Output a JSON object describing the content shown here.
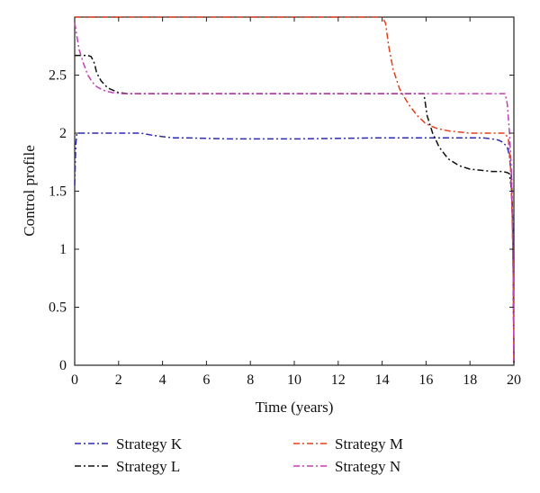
{
  "chart_data": {
    "type": "line",
    "xlabel": "Time (years)",
    "ylabel": "Control profile",
    "xlim": [
      0,
      20
    ],
    "ylim": [
      0,
      3
    ],
    "xticks": [
      "0",
      "2",
      "4",
      "6",
      "8",
      "10",
      "12",
      "14",
      "16",
      "18",
      "20"
    ],
    "yticks": [
      "0",
      "0.5",
      "1",
      "1.5",
      "2",
      "2.5"
    ],
    "grid": false,
    "legend_position": "below",
    "series": [
      {
        "name": "Strategy K",
        "color": "#2b2bb0",
        "x": [
          0,
          0.05,
          0.1,
          0.3,
          1.0,
          2.0,
          3.0,
          3.3,
          3.6,
          4.0,
          4.5,
          5.0,
          7.0,
          10.0,
          14.0,
          18.0,
          18.6,
          19.0,
          19.3,
          19.5,
          19.7,
          19.8,
          19.9,
          19.96,
          20.0
        ],
        "y": [
          1.55,
          1.9,
          2.0,
          2.0,
          2.0,
          2.0,
          2.0,
          1.99,
          1.98,
          1.97,
          1.96,
          1.96,
          1.95,
          1.95,
          1.96,
          1.96,
          1.96,
          1.95,
          1.94,
          1.92,
          1.88,
          1.8,
          1.6,
          1.1,
          0.05
        ]
      },
      {
        "name": "Strategy L",
        "color": "#111111",
        "x": [
          0,
          0.6,
          0.75,
          0.9,
          1.0,
          1.2,
          1.5,
          2.0,
          2.4,
          5,
          10,
          15.9,
          16.05,
          16.3,
          16.6,
          17.0,
          17.5,
          18.0,
          18.5,
          19.0,
          19.5,
          19.7,
          19.8,
          19.9,
          19.96,
          20.0
        ],
        "y": [
          2.67,
          2.67,
          2.66,
          2.6,
          2.52,
          2.45,
          2.39,
          2.35,
          2.34,
          2.34,
          2.34,
          2.34,
          2.15,
          2.0,
          1.88,
          1.78,
          1.72,
          1.69,
          1.68,
          1.67,
          1.67,
          1.66,
          1.65,
          1.5,
          1.0,
          0.02
        ]
      },
      {
        "name": "Strategy M",
        "color": "#e0401c",
        "x": [
          0,
          14.0,
          14.15,
          14.3,
          14.5,
          14.8,
          15.2,
          15.6,
          16.0,
          16.5,
          17.0,
          17.5,
          18.0,
          19.0,
          19.6,
          19.75,
          19.85,
          19.92,
          19.97,
          20.0
        ],
        "y": [
          3.0,
          3.0,
          2.95,
          2.75,
          2.55,
          2.38,
          2.25,
          2.15,
          2.08,
          2.04,
          2.02,
          2.01,
          2.0,
          2.0,
          2.0,
          1.95,
          1.7,
          1.3,
          0.8,
          0.02
        ]
      },
      {
        "name": "Strategy N",
        "color": "#c23fb8",
        "x": [
          0,
          0.2,
          0.4,
          0.6,
          0.8,
          1.0,
          1.3,
          1.7,
          2.2,
          3.0,
          6,
          10,
          14,
          18,
          19.6,
          19.7,
          19.8,
          19.88,
          19.94,
          19.98,
          20.0
        ],
        "y": [
          2.95,
          2.72,
          2.6,
          2.5,
          2.44,
          2.4,
          2.37,
          2.35,
          2.34,
          2.34,
          2.34,
          2.34,
          2.34,
          2.34,
          2.34,
          2.25,
          2.0,
          1.7,
          1.2,
          0.6,
          0.02
        ]
      }
    ]
  }
}
